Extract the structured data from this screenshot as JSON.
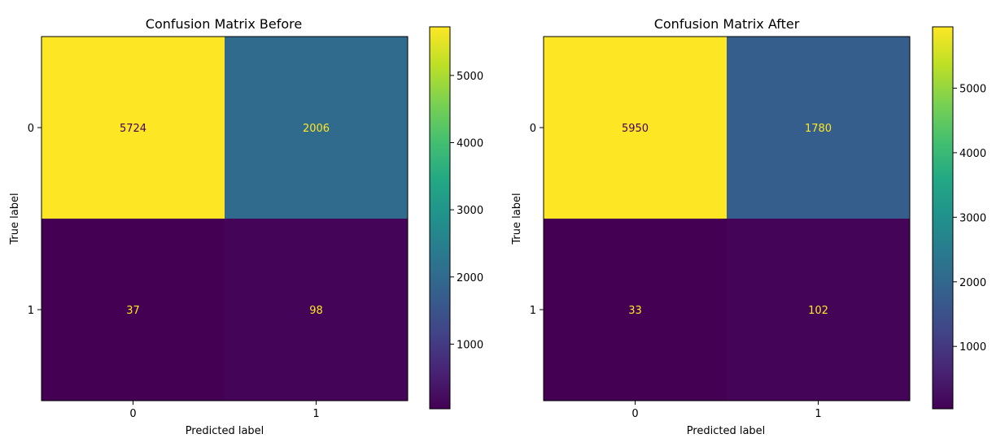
{
  "chart_data": [
    {
      "type": "heatmap",
      "title": "Confusion Matrix Before",
      "xlabel": "Predicted label",
      "ylabel": "True label",
      "x_categories": [
        "0",
        "1"
      ],
      "y_categories": [
        "0",
        "1"
      ],
      "values": [
        [
          5724,
          2006
        ],
        [
          37,
          98
        ]
      ],
      "colormap": "viridis",
      "colorbar": {
        "range": [
          37,
          5724
        ],
        "ticks": [
          1000,
          2000,
          3000,
          4000,
          5000
        ]
      }
    },
    {
      "type": "heatmap",
      "title": "Confusion Matrix After",
      "xlabel": "Predicted label",
      "ylabel": "True label",
      "x_categories": [
        "0",
        "1"
      ],
      "y_categories": [
        "0",
        "1"
      ],
      "values": [
        [
          5950,
          1780
        ],
        [
          33,
          102
        ]
      ],
      "colormap": "viridis",
      "colorbar": {
        "range": [
          33,
          5950
        ],
        "ticks": [
          1000,
          2000,
          3000,
          4000,
          5000
        ]
      }
    }
  ]
}
